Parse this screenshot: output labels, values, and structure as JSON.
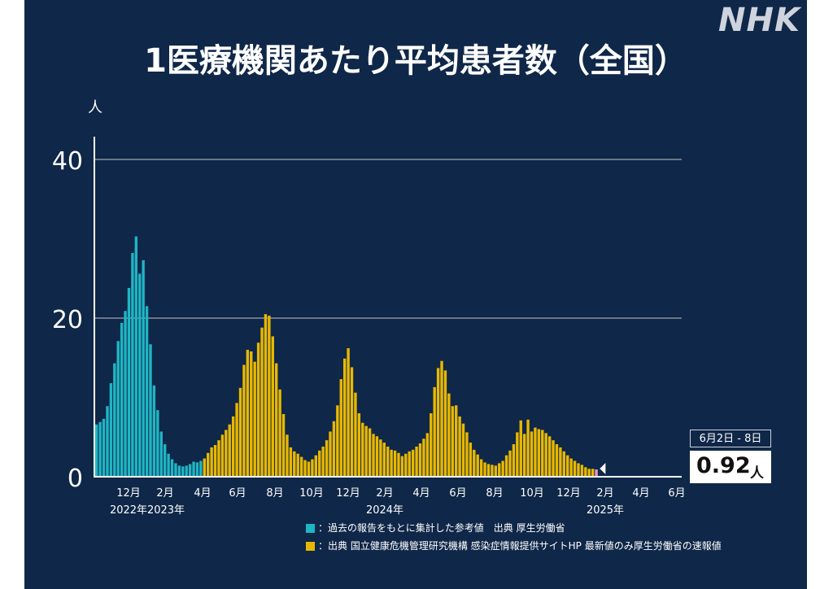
{
  "branding": {
    "logo": "NHK"
  },
  "colors": {
    "background": "#0f2748",
    "teal": "#1fb5c4",
    "gold": "#e8b800",
    "latest": "#e79ac8",
    "grid": "#6b7686"
  },
  "chart_data": {
    "type": "bar",
    "title": "1医療機関あたり平均患者数（全国）",
    "ylabel": "人",
    "ylim": [
      0,
      40
    ],
    "yticks": [
      0,
      20,
      40
    ],
    "grid": true,
    "x_tick_labels": [
      "12月",
      "2月",
      "4月",
      "6月",
      "8月",
      "10月",
      "12月",
      "2月",
      "4月",
      "6月",
      "8月",
      "10月",
      "12月",
      "2月",
      "4月",
      "6月"
    ],
    "year_labels": [
      "2022年",
      "2023年",
      "2024年",
      "2025年"
    ],
    "series": [
      {
        "legend": "：過去の報告をもとに集計した参考値　出典 厚生労働省",
        "color": "#1fb5c4",
        "values": [
          6.6,
          6.9,
          7.3,
          8.9,
          11.8,
          14.3,
          17.1,
          19.4,
          20.9,
          23.8,
          28.2,
          30.3,
          25.6,
          27.3,
          21.5,
          16.7,
          11.5,
          8.4,
          5.7,
          4.1,
          2.9,
          2.2,
          1.7,
          1.4,
          1.3,
          1.4,
          1.6,
          1.9,
          1.8,
          2.0
        ]
      },
      {
        "legend": "：出典 国立健康危機管理研究機構 感染症情報提供サイトHP 最新値のみ厚生労働省の速報値",
        "color": "#e8b800",
        "values": [
          2.3,
          3.0,
          3.7,
          4.0,
          4.6,
          5.3,
          5.9,
          6.6,
          7.6,
          9.3,
          11.2,
          14.1,
          16.0,
          15.8,
          14.5,
          16.9,
          18.8,
          20.5,
          20.3,
          17.7,
          14.3,
          11.0,
          7.9,
          5.3,
          3.7,
          3.2,
          2.9,
          2.5,
          2.1,
          1.9,
          2.2,
          2.7,
          3.3,
          3.8,
          4.6,
          5.7,
          7.0,
          9.0,
          12.3,
          14.9,
          16.2,
          13.8,
          10.6,
          8.0,
          6.8,
          6.4,
          6.1,
          5.4,
          5.1,
          4.7,
          4.3,
          3.8,
          3.4,
          3.3,
          3.0,
          2.6,
          2.9,
          3.2,
          3.4,
          3.8,
          4.2,
          4.8,
          5.5,
          8.0,
          11.3,
          13.7,
          14.6,
          13.4,
          10.5,
          8.9,
          9.0,
          7.6,
          6.7,
          5.6,
          4.3,
          3.4,
          2.8,
          2.2,
          1.8,
          1.6,
          1.5,
          1.4,
          1.7,
          2.0,
          2.7,
          3.3,
          4.1,
          5.6,
          7.1,
          5.4,
          7.2,
          5.7,
          6.2,
          6.0,
          5.9,
          5.5,
          5.1,
          4.6,
          4.1,
          3.7,
          3.2,
          2.7,
          2.3,
          2.0,
          1.7,
          1.5,
          1.2,
          1.0,
          1.0
        ]
      }
    ],
    "latest": {
      "period": "6月2日 - 8日",
      "value": "0.92",
      "unit": "人"
    }
  }
}
